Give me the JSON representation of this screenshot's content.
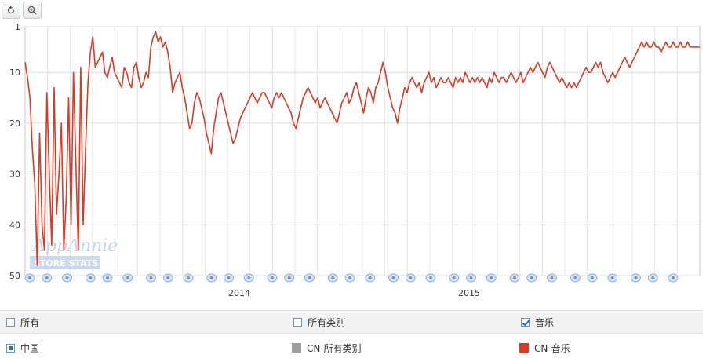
{
  "toolbar": {
    "reset_icon": "reset-icon",
    "zoom_icon": "zoom-in-icon"
  },
  "watermark": {
    "brand": "AppAnnie",
    "tag": "STORE STATS"
  },
  "filters": {
    "row1": [
      {
        "label": "所有",
        "checked": false
      },
      {
        "label": "所有类别",
        "checked": false
      },
      {
        "label": "音乐",
        "checked": true
      }
    ],
    "row2": [
      {
        "label": "中国",
        "type": "country"
      },
      {
        "label": "CN-所有类别",
        "color": "#9e9e9e"
      },
      {
        "label": "CN-音乐",
        "color": "#d93a26"
      }
    ]
  },
  "chart_data": {
    "type": "line",
    "y_inverted": true,
    "ylim": [
      1,
      50
    ],
    "yticks": [
      1,
      10,
      20,
      30,
      40,
      50
    ],
    "xticks": [
      "2014",
      "2015"
    ],
    "grid": true,
    "series": [
      {
        "name": "CN-音乐",
        "color": "#d93a26",
        "values": [
          8,
          11,
          15,
          25,
          32,
          48,
          22,
          40,
          45,
          14,
          30,
          44,
          13,
          38,
          30,
          20,
          45,
          35,
          15,
          40,
          10,
          28,
          45,
          9,
          40,
          25,
          12,
          6,
          3,
          9,
          8,
          7,
          6,
          10,
          11,
          9,
          7,
          10,
          11,
          12,
          13,
          9,
          10,
          12,
          13,
          9,
          8,
          11,
          13,
          12,
          10,
          11,
          5,
          3,
          2,
          4,
          3,
          5,
          4,
          6,
          9,
          14,
          12,
          11,
          10,
          13,
          15,
          18,
          21,
          20,
          16,
          14,
          15,
          17,
          19,
          22,
          24,
          26,
          21,
          18,
          15,
          14,
          16,
          18,
          20,
          22,
          24,
          23,
          21,
          19,
          18,
          17,
          16,
          15,
          14,
          15,
          16,
          15,
          14,
          14,
          15,
          16,
          17,
          15,
          14,
          15,
          14,
          15,
          16,
          17,
          18,
          20,
          21,
          19,
          17,
          15,
          14,
          13,
          14,
          15,
          16,
          15,
          17,
          16,
          15,
          16,
          17,
          18,
          19,
          20,
          18,
          16,
          15,
          14,
          16,
          15,
          13,
          12,
          14,
          16,
          18,
          15,
          13,
          14,
          16,
          13,
          12,
          10,
          8,
          10,
          13,
          15,
          17,
          18,
          20,
          17,
          15,
          13,
          14,
          12,
          11,
          12,
          13,
          12,
          14,
          12,
          11,
          10,
          12,
          11,
          13,
          12,
          11,
          12,
          12,
          11,
          12,
          13,
          11,
          12,
          11,
          12,
          10,
          11,
          12,
          11,
          12,
          11,
          12,
          11,
          12,
          13,
          11,
          12,
          10,
          11,
          12,
          11,
          11,
          12,
          11,
          10,
          11,
          12,
          11,
          10,
          12,
          11,
          10,
          9,
          10,
          9,
          8,
          9,
          10,
          11,
          9,
          8,
          9,
          10,
          11,
          12,
          11,
          12,
          13,
          12,
          13,
          12,
          13,
          12,
          11,
          10,
          9,
          10,
          10,
          9,
          8,
          9,
          8,
          10,
          11,
          12,
          11,
          10,
          11,
          10,
          9,
          8,
          7,
          8,
          9,
          8,
          7,
          6,
          5,
          4,
          5,
          4,
          5,
          5,
          4,
          5,
          5,
          6,
          5,
          4,
          5,
          5,
          4,
          5,
          5,
          4,
          5,
          5,
          4,
          5,
          5,
          5,
          5,
          5
        ]
      },
      {
        "name": "CN-所有类别",
        "color": "#9e9e9e",
        "values": []
      }
    ],
    "event_markers": 33
  }
}
